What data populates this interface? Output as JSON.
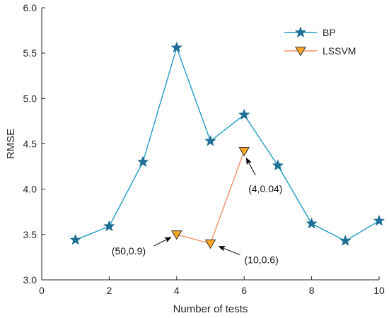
{
  "chart_data": {
    "type": "line",
    "xlabel": "Number of tests",
    "ylabel": "RMSE",
    "xlim": [
      0,
      10
    ],
    "ylim": [
      3.0,
      6.0
    ],
    "xticks": [
      "0",
      "2",
      "4",
      "6",
      "8",
      "10"
    ],
    "yticks": [
      "3.0",
      "3.5",
      "4.0",
      "4.5",
      "5.0",
      "5.5",
      "6.0"
    ],
    "grid": false,
    "legend_position": "top-right",
    "series": [
      {
        "name": "BP",
        "color": "#1f9bc7",
        "marker": "star",
        "marker_color": "#1f6f96",
        "x": [
          1,
          2,
          3,
          4,
          5,
          6,
          7,
          8,
          9,
          10
        ],
        "y": [
          3.44,
          3.59,
          4.3,
          5.56,
          4.53,
          4.82,
          4.26,
          3.62,
          3.43,
          3.65
        ]
      },
      {
        "name": "LSSVM",
        "color": "#f0906a",
        "marker": "triangle-down",
        "marker_color": "#f5a623",
        "x": [
          4,
          5,
          6
        ],
        "y": [
          3.5,
          3.4,
          4.42
        ]
      }
    ],
    "annotations": [
      {
        "text": "(50,0.9)",
        "x": 4,
        "y": 3.5
      },
      {
        "text": "(10,0.6)",
        "x": 5,
        "y": 3.4
      },
      {
        "text": "(4,0.04)",
        "x": 6,
        "y": 4.42
      }
    ]
  }
}
